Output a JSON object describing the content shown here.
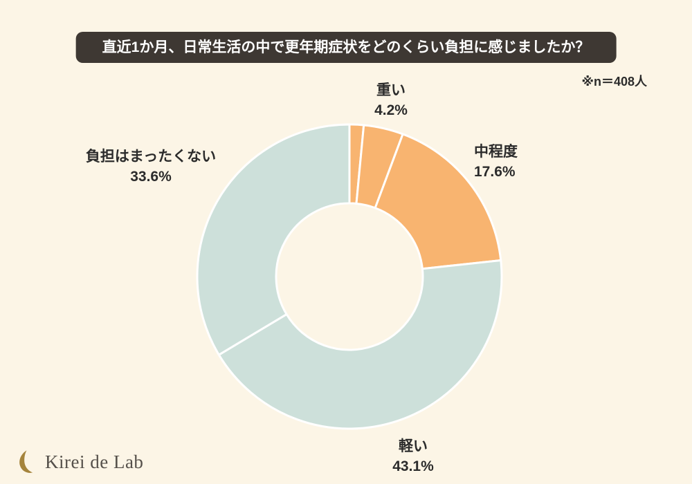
{
  "title": "直近1か月、日常生活の中で更年期症状をどのくらい負担に感じましたか？",
  "note": "※n＝408人",
  "logo": {
    "text": "Kirei de Lab"
  },
  "colors": {
    "background": "#fcf5e6",
    "title_bg": "#3e3833",
    "title_text": "#ffffff",
    "orange": "#f8b470",
    "teal": "#cde0da",
    "label_text": "#2b2b2b",
    "divider": "#ffffff",
    "logo_text": "#55504a",
    "logo_icon": "#a5843c"
  },
  "chart_data": {
    "type": "pie",
    "donut": true,
    "start_angle_deg": 0,
    "clockwise": true,
    "title": "直近1か月、日常生活の中で更年期症状をどのくらい負担に感じましたか？",
    "sample_note": "※n＝408人",
    "sample_n": 408,
    "legend_position": "around",
    "segments": [
      {
        "label": "",
        "display": "",
        "value": 1.5,
        "color": "#f8b470"
      },
      {
        "label": "重い",
        "display": "4.2%",
        "value": 4.2,
        "color": "#f8b470"
      },
      {
        "label": "中程度",
        "display": "17.6%",
        "value": 17.6,
        "color": "#f8b470"
      },
      {
        "label": "軽い",
        "display": "43.1%",
        "value": 43.1,
        "color": "#cde0da"
      },
      {
        "label": "負担はまったくない",
        "display": "33.6%",
        "value": 33.6,
        "color": "#cde0da"
      }
    ]
  }
}
